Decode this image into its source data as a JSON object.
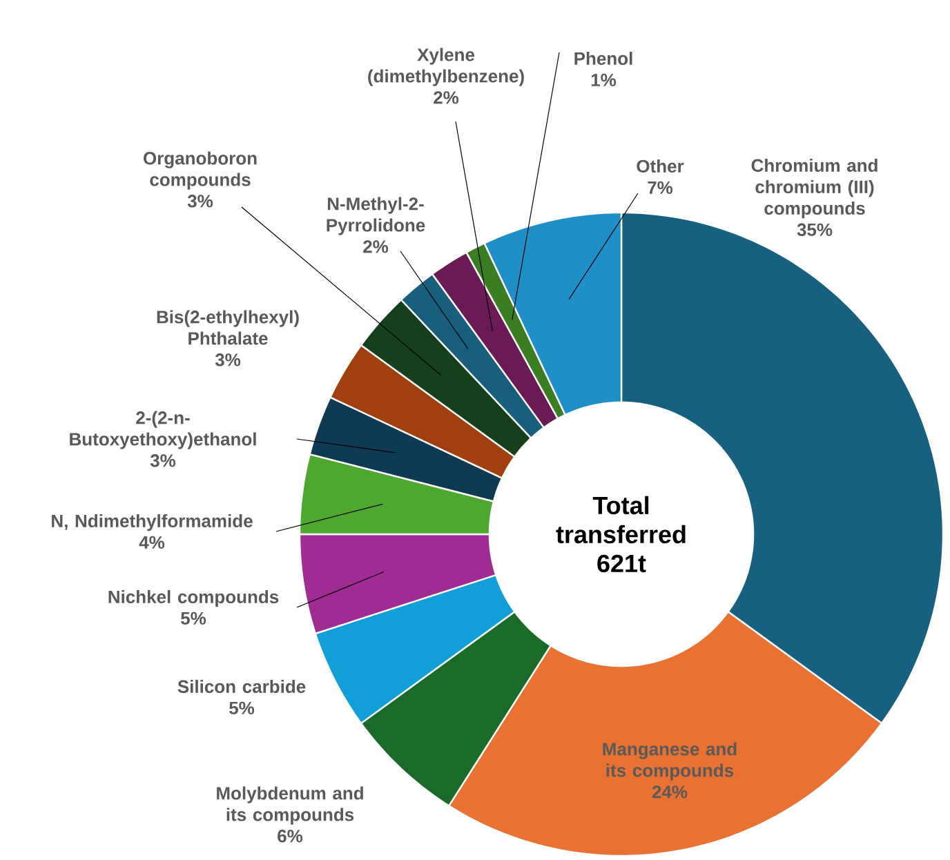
{
  "chart_data": {
    "type": "donut",
    "categories": [
      "Chromium and chromium (III) compounds",
      "Manganese and its compounds",
      "Molybdenum and its compounds",
      "Silicon carbide",
      "Nichkel compounds",
      "N, Ndimethylformamide",
      "2-(2-n-Butoxyethoxy)ethanol",
      "Bis(2-ethylhexyl) Phthalate",
      "Organoboron compounds",
      "N-Methyl-2-Pyrrolidone",
      "Xylene (dimethylbenzene)",
      "Phenol",
      "Other"
    ],
    "values": [
      35,
      24,
      6,
      5,
      5,
      4,
      3,
      3,
      3,
      2,
      2,
      1,
      7
    ],
    "value_labels": [
      "35%",
      "24%",
      "6%",
      "5%",
      "5%",
      "4%",
      "3%",
      "3%",
      "3%",
      "2%",
      "2%",
      "1%",
      "7%"
    ],
    "colors": [
      "#17607f",
      "#e97132",
      "#1a6b2a",
      "#129fd8",
      "#a02b93",
      "#4ea72e",
      "#0e3a52",
      "#a0400f",
      "#163f1c",
      "#175f7d",
      "#6a1a55",
      "#3a7d22",
      "#1f8fc7"
    ],
    "annotations": [
      "Total transferred 621t"
    ]
  }
}
